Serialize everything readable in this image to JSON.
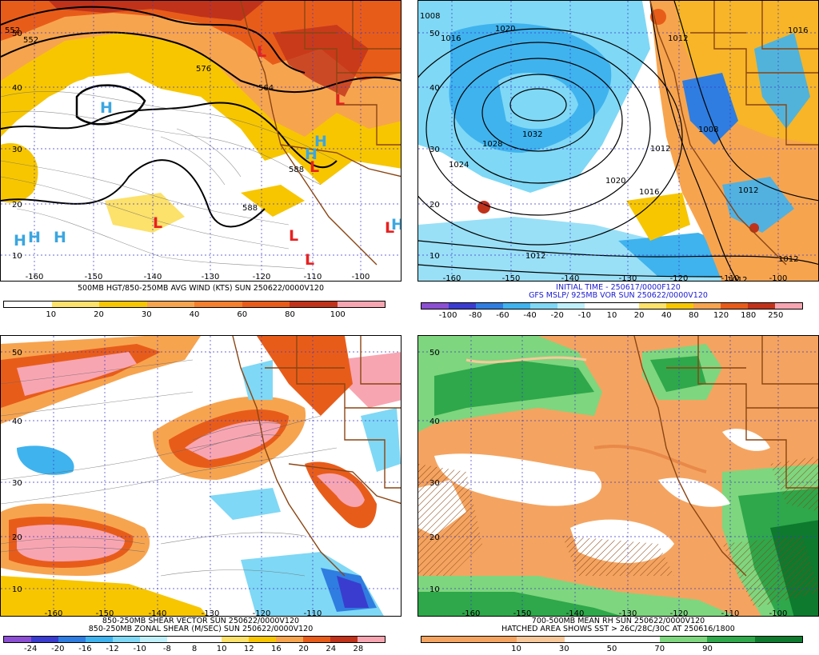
{
  "panels": [
    {
      "caption1": "500MB HGT/850-250MB AVG WIND (KTS) SUN 250622/0000V120",
      "caption2": "",
      "colorbar": {
        "colors": [
          "#ffffff",
          "#fce16b",
          "#f7c600",
          "#f7a44f",
          "#f47f2c",
          "#e85c1a",
          "#c1321a",
          "#f8a5b2"
        ],
        "ticks": [
          "10",
          "20",
          "30",
          "40",
          "60",
          "80",
          "100"
        ]
      },
      "lat_labels": [
        "50",
        "40",
        "30",
        "20",
        "10"
      ],
      "lon_labels": [
        "-160",
        "-150",
        "-140",
        "-130",
        "-120",
        "-110",
        "-100"
      ],
      "contour_labels": [
        "552",
        "564",
        "576",
        "588",
        "588",
        "552"
      ],
      "highs": [
        "H",
        "H",
        "H",
        "H",
        "H",
        "H",
        "H"
      ],
      "lows": [
        "L",
        "L",
        "L",
        "L",
        "L",
        "L",
        "L"
      ]
    },
    {
      "caption1": "INITIAL TIME - 250617/0000F120",
      "caption2": "GFS MSLP/ 925MB VOR SUN 250622/0000V120",
      "colorbar": {
        "colors": [
          "#8c4fd3",
          "#3a3ccf",
          "#2f7de0",
          "#3fb3ee",
          "#7fd8f5",
          "#bff0fb",
          "#ffffff",
          "#ffffff",
          "#fce16b",
          "#f7c600",
          "#f7a44f",
          "#e85c1a",
          "#c1321a",
          "#f8a5b2"
        ],
        "ticks": [
          "-100",
          "-80",
          "-60",
          "-40",
          "-20",
          "-10",
          "10",
          "20",
          "40",
          "80",
          "120",
          "180",
          "250"
        ]
      },
      "lat_labels": [
        "50",
        "40",
        "30",
        "20",
        "10"
      ],
      "lon_labels": [
        "-160",
        "-150",
        "-140",
        "-130",
        "-120",
        "-110",
        "-100"
      ],
      "isobar_labels": [
        "1020",
        "1016",
        "1032",
        "1028",
        "1024",
        "1020",
        "1016",
        "1012",
        "1012",
        "1012",
        "1012",
        "1008",
        "1012",
        "1012",
        "1008",
        "1016"
      ]
    },
    {
      "caption1": "850-250MB SHEAR VECTOR SUN 250622/0000V120",
      "caption2": "850-250MB ZONAL SHEAR (M/SEC) SUN 250622/0000V120",
      "colorbar": {
        "colors": [
          "#8c4fd3",
          "#3a3ccf",
          "#2f7de0",
          "#3fb3ee",
          "#7fd8f5",
          "#bff0fb",
          "#ffffff",
          "#ffffff",
          "#fce16b",
          "#f7c600",
          "#f7a44f",
          "#e85c1a",
          "#c1321a",
          "#f8a5b2"
        ],
        "ticks": [
          "-24",
          "-20",
          "-16",
          "-12",
          "-10",
          "-8",
          "8",
          "10",
          "12",
          "16",
          "20",
          "24",
          "28"
        ]
      },
      "lat_labels": [
        "50",
        "40",
        "30",
        "20",
        "10"
      ],
      "lon_labels": [
        "-160",
        "-150",
        "-140",
        "-130",
        "-120",
        "-110"
      ]
    },
    {
      "caption1": "700-500MB MEAN RH SUN 250622/0000V120",
      "caption2": "HATCHED AREA SHOWS SST > 26C/28C/30C AT 250616/1800",
      "colorbar": {
        "colors": [
          "#f4a460",
          "#f4a460",
          "#f9c89a",
          "#ffffff",
          "#ffffff",
          "#7ed67e",
          "#2ea84a",
          "#0d7a2e"
        ],
        "ticks": [
          "10",
          "30",
          "50",
          "70",
          "90"
        ]
      },
      "lat_labels": [
        "50",
        "40",
        "30",
        "20",
        "10"
      ],
      "lon_labels": [
        "-160",
        "-150",
        "-140",
        "-130",
        "-120",
        "-110",
        "-100"
      ]
    }
  ],
  "colors": {
    "grid": "#3a3acc",
    "border": "#8b4513",
    "high": "#3ba6e0",
    "low": "#e82020"
  }
}
